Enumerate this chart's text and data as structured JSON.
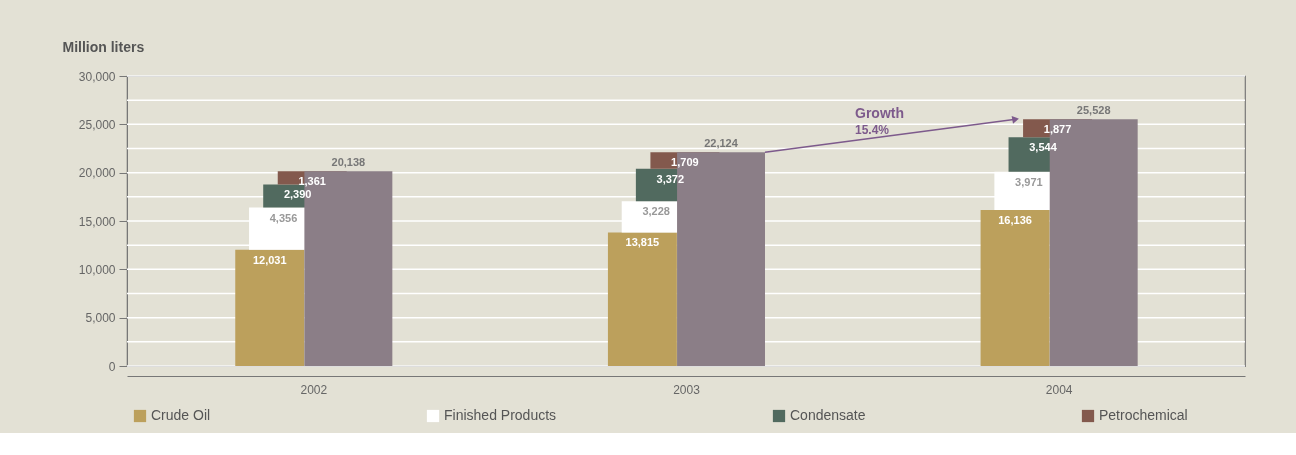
{
  "chart_data": {
    "type": "bar",
    "ylabel": "Million liters",
    "categories": [
      "2002",
      "2003",
      "2004"
    ],
    "series": [
      {
        "name": "Crude Oil",
        "color": "#bca05c",
        "values": [
          12031,
          13815,
          16136
        ],
        "base": [
          0,
          0,
          0
        ],
        "value_labels": [
          "12,031",
          "13,815",
          "16,136"
        ]
      },
      {
        "name": "Finished Products",
        "color": "#ffffff",
        "values": [
          4356,
          3228,
          3971
        ],
        "base": [
          12031,
          13815,
          16136
        ],
        "value_labels": [
          "4,356",
          "3,228",
          "3,971"
        ]
      },
      {
        "name": "Condensate",
        "color": "#516a5f",
        "values": [
          2390,
          3372,
          3544
        ],
        "base": [
          16387,
          17043,
          20107
        ],
        "value_labels": [
          "2,390",
          "3,372",
          "3,544"
        ]
      },
      {
        "name": "Petrochemical",
        "color": "#83594d",
        "values": [
          1361,
          1709,
          1877
        ],
        "base": [
          18777,
          20415,
          23651
        ],
        "value_labels": [
          "1,361",
          "1,709",
          "1,877"
        ]
      },
      {
        "color": "#8b7e87",
        "values": [
          20138,
          22124,
          25528
        ],
        "base": [
          0,
          0,
          0
        ],
        "value_labels": [
          "20,138",
          "22,124",
          "25,528"
        ]
      }
    ],
    "ylim": [
      0,
      30000
    ],
    "yticks": [
      {
        "value": 0,
        "label": "0"
      },
      {
        "value": 2500,
        "label": null
      },
      {
        "value": 5000,
        "label": "5,000"
      },
      {
        "value": 7500,
        "label": null
      },
      {
        "value": 10000,
        "label": "10,000"
      },
      {
        "value": 12500,
        "label": null
      },
      {
        "value": 15000,
        "label": "15,000"
      },
      {
        "value": 17500,
        "label": null
      },
      {
        "value": 20000,
        "label": "20,000"
      },
      {
        "value": 22500,
        "label": null
      },
      {
        "value": 25000,
        "label": "25,000"
      },
      {
        "value": 27500,
        "label": null
      },
      {
        "value": 30000,
        "label": "30,000"
      }
    ],
    "grid": "y",
    "legend": "bottom",
    "annotations": [
      "Growth",
      "15.4%"
    ]
  }
}
